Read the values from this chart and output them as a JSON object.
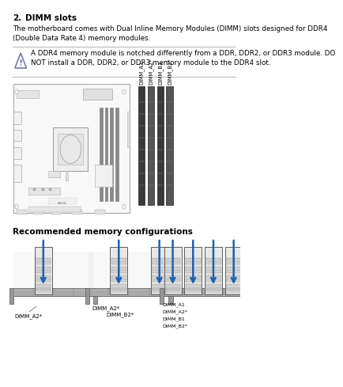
{
  "title_num": "2.",
  "title_text": "DIMM slots",
  "body_text": "The motherboard comes with Dual Inline Memory Modules (DIMM) slots designed for DDR4\n(Double Data Rate 4) memory modules.",
  "warning_text": "A DDR4 memory module is notched differently from a DDR, DDR2, or DDR3 module. DO\nNOT install a DDR, DDR2, or DDR3 memory module to the DDR4 slot.",
  "section2_title": "Recommended memory configurations",
  "dimm_labels_left": [
    "DIMM_A1",
    "DIMM_A2*"
  ],
  "dimm_labels_right": [
    "DIMM_B1",
    "DIMM_B2*"
  ],
  "config1_label": "DIMM_A2*",
  "config2_labels": [
    "DIMM_A2*",
    "DIMM_B2*"
  ],
  "config3_labels": [
    "DIMM_A1",
    "DIMM_A2*",
    "DIMM_B1",
    "DIMM_B2*"
  ],
  "bg_color": "#ffffff",
  "text_color": "#000000",
  "warn_line_color": "#bbbbbb",
  "slot_dark": "#3a3a3a",
  "slot_mid": "#666666",
  "slot_light": "#999999",
  "board_fill": "#f5f5f5",
  "board_edge": "#aaaaaa",
  "blue_arrow": "#2060b0"
}
